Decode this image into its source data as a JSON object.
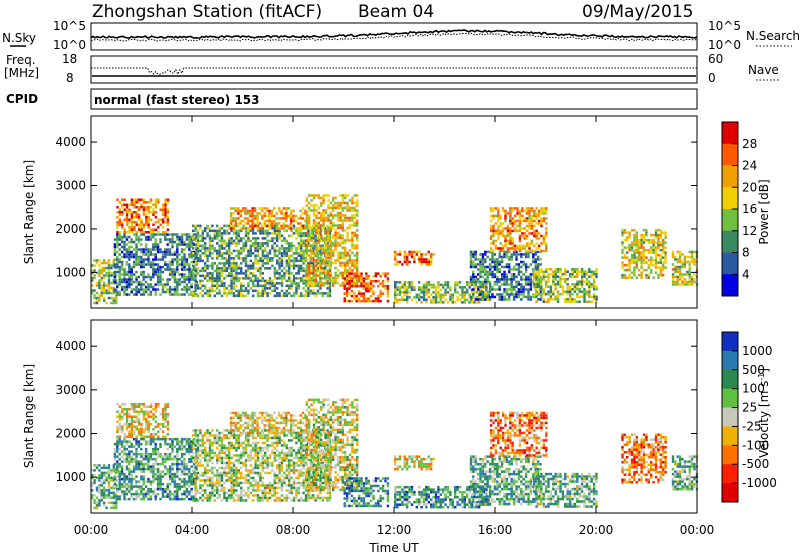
{
  "header": {
    "station": "Zhongshan Station (fitACF)",
    "beam": "Beam 04",
    "date": "09/May/2015"
  },
  "strip1": {
    "left_label": "N.Sky",
    "right_label": "N.Search",
    "left_ticks": [
      "10^5",
      "10^0"
    ],
    "right_ticks": [
      "10^5",
      "10^0"
    ]
  },
  "strip2": {
    "left_label_top": "Freq.",
    "left_label_bottom": "[MHz]",
    "right_label": "Nave",
    "left_ticks": [
      "18",
      "8"
    ],
    "right_ticks": [
      "60",
      "0"
    ]
  },
  "cpid": {
    "label": "CPID",
    "mode": "normal (fast stereo) 153"
  },
  "axes": {
    "ylabel": "Slant Range [km]",
    "yticks": [
      "4000",
      "3000",
      "2000",
      "1000"
    ],
    "xlabel": "Time UT",
    "xticks": [
      "00:00",
      "04:00",
      "08:00",
      "12:00",
      "16:00",
      "20:00",
      "00:00"
    ]
  },
  "chart_data": [
    {
      "type": "heatmap",
      "title": "",
      "xlabel": "Time UT",
      "ylabel": "Slant Range [km]",
      "xlim": [
        0,
        24
      ],
      "ylim": [
        180,
        4600
      ],
      "colorbar": {
        "label": "Power [dB]",
        "ticks": [
          "28",
          "24",
          "20",
          "16",
          "12",
          "8",
          "4"
        ],
        "colors": [
          "#e00000",
          "#ff5a00",
          "#f0a000",
          "#f0d000",
          "#70c040",
          "#3a8a60",
          "#2a5aa0",
          "#0000e0"
        ]
      },
      "regions": [
        {
          "t": [
            0.0,
            1.0
          ],
          "r": [
            300,
            1300
          ],
          "level": 0.55
        },
        {
          "t": [
            0.9,
            4.2
          ],
          "r": [
            500,
            1900
          ],
          "level": 0.72
        },
        {
          "t": [
            1.0,
            3.0
          ],
          "r": [
            1900,
            2700
          ],
          "level": 0.25
        },
        {
          "t": [
            4.0,
            9.5
          ],
          "r": [
            450,
            2100
          ],
          "level": 0.65
        },
        {
          "t": [
            5.5,
            8.5
          ],
          "r": [
            2000,
            2500
          ],
          "level": 0.3
        },
        {
          "t": [
            8.5,
            10.5
          ],
          "r": [
            700,
            2800
          ],
          "level": 0.4
        },
        {
          "t": [
            10.0,
            11.8
          ],
          "r": [
            350,
            1000
          ],
          "level": 0.2
        },
        {
          "t": [
            12.0,
            13.6
          ],
          "r": [
            1200,
            1500
          ],
          "level": 0.25
        },
        {
          "t": [
            12.0,
            15.8
          ],
          "r": [
            300,
            800
          ],
          "level": 0.55
        },
        {
          "t": [
            15.0,
            17.8
          ],
          "r": [
            400,
            1500
          ],
          "level": 0.75
        },
        {
          "t": [
            15.8,
            18.0
          ],
          "r": [
            1500,
            2500
          ],
          "level": 0.3
        },
        {
          "t": [
            17.5,
            20.0
          ],
          "r": [
            300,
            1100
          ],
          "level": 0.55
        },
        {
          "t": [
            21.0,
            22.8
          ],
          "r": [
            900,
            2000
          ],
          "level": 0.45
        },
        {
          "t": [
            23.0,
            24.0
          ],
          "r": [
            700,
            1500
          ],
          "level": 0.45
        }
      ]
    },
    {
      "type": "heatmap",
      "title": "",
      "xlabel": "Time UT",
      "ylabel": "Slant Range [km]",
      "xlim": [
        0,
        24
      ],
      "ylim": [
        180,
        4600
      ],
      "colorbar": {
        "label": "Velocity [m s",
        "label_sup": "-1",
        "label_end": "]",
        "ticks": [
          "1000",
          "500",
          "100",
          "25",
          "-25",
          "-100",
          "-500",
          "-1000"
        ],
        "colors": [
          "#1030c0",
          "#2a7ab0",
          "#2a8a50",
          "#60c040",
          "#c8c8b8",
          "#f0b000",
          "#ff7000",
          "#ff2000",
          "#e00000"
        ]
      },
      "regions": [
        {
          "t": [
            0.0,
            1.0
          ],
          "r": [
            300,
            1300
          ],
          "level": 0.35
        },
        {
          "t": [
            0.9,
            4.2
          ],
          "r": [
            500,
            1900
          ],
          "level": 0.3
        },
        {
          "t": [
            1.0,
            3.0
          ],
          "r": [
            1900,
            2700
          ],
          "level": 0.55
        },
        {
          "t": [
            4.0,
            9.5
          ],
          "r": [
            450,
            2100
          ],
          "level": 0.45
        },
        {
          "t": [
            5.5,
            8.5
          ],
          "r": [
            2000,
            2500
          ],
          "level": 0.55
        },
        {
          "t": [
            8.5,
            10.5
          ],
          "r": [
            700,
            2800
          ],
          "level": 0.5
        },
        {
          "t": [
            10.0,
            11.8
          ],
          "r": [
            350,
            1000
          ],
          "level": 0.25
        },
        {
          "t": [
            12.0,
            13.6
          ],
          "r": [
            1200,
            1500
          ],
          "level": 0.55
        },
        {
          "t": [
            12.0,
            15.8
          ],
          "r": [
            300,
            800
          ],
          "level": 0.25
        },
        {
          "t": [
            15.0,
            17.8
          ],
          "r": [
            400,
            1500
          ],
          "level": 0.35
        },
        {
          "t": [
            15.8,
            18.0
          ],
          "r": [
            1500,
            2500
          ],
          "level": 0.7
        },
        {
          "t": [
            17.5,
            20.0
          ],
          "r": [
            300,
            1100
          ],
          "level": 0.35
        },
        {
          "t": [
            21.0,
            22.8
          ],
          "r": [
            900,
            2000
          ],
          "level": 0.7
        },
        {
          "t": [
            23.0,
            24.0
          ],
          "r": [
            700,
            1500
          ],
          "level": 0.35
        }
      ]
    }
  ]
}
